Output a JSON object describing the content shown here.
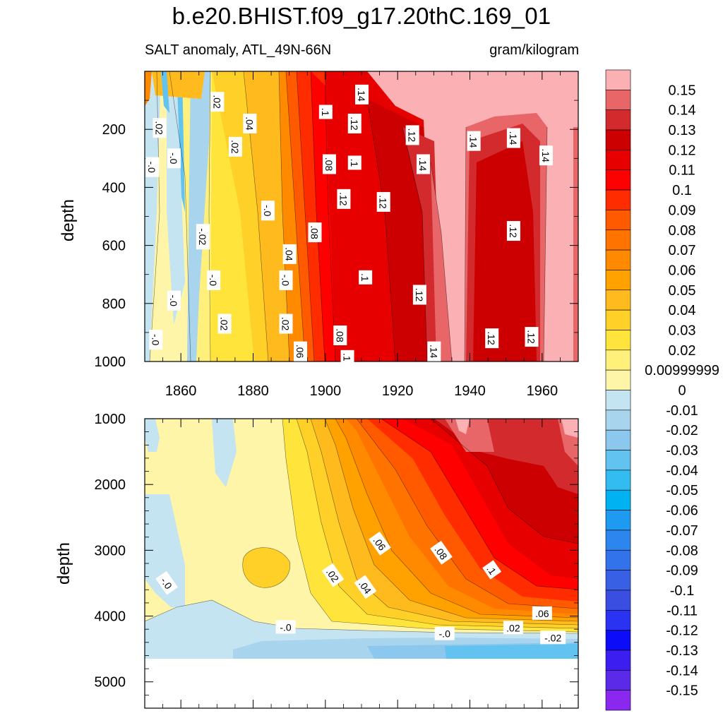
{
  "chart_data": {
    "type": "heatmap",
    "title": "b.e20.BHIST.f09_g17.20thC.169_01",
    "subtitle_left": "SALT anomaly, ATL_49N-66N",
    "subtitle_right": "gram/kilogram",
    "panels": [
      {
        "name": "upper",
        "ylabel": "depth",
        "xlim": [
          1850,
          1970
        ],
        "ylim": [
          0,
          1000
        ],
        "x_ticks": [
          "1860",
          "1880",
          "1900",
          "1920",
          "1940",
          "1960"
        ],
        "y_ticks": [
          {
            "value": 200,
            "label": "200"
          },
          {
            "value": 400,
            "label": "400"
          },
          {
            "value": 600,
            "label": "600"
          },
          {
            "value": 800,
            "label": "800"
          },
          {
            "value": 1000,
            "label": "1000"
          }
        ],
        "contour_labels": [
          {
            "text": ".02",
            "x": 1870,
            "y": 105
          },
          {
            "text": ".04",
            "x": 1879,
            "y": 180
          },
          {
            "text": ".02",
            "x": 1854,
            "y": 195
          },
          {
            "text": "-.0",
            "x": 1852,
            "y": 330
          },
          {
            "text": "-.0",
            "x": 1858,
            "y": 300
          },
          {
            "text": ".02",
            "x": 1875,
            "y": 260
          },
          {
            "text": ".1",
            "x": 1900,
            "y": 140
          },
          {
            "text": ".14",
            "x": 1910,
            "y": 80
          },
          {
            "text": ".12",
            "x": 1908,
            "y": 180
          },
          {
            "text": ".12",
            "x": 1924,
            "y": 220
          },
          {
            "text": ".08",
            "x": 1901,
            "y": 320
          },
          {
            "text": ".1",
            "x": 1908,
            "y": 315
          },
          {
            "text": ".14",
            "x": 1927,
            "y": 320
          },
          {
            "text": ".14",
            "x": 1941,
            "y": 240
          },
          {
            "text": ".14",
            "x": 1952,
            "y": 230
          },
          {
            "text": ".14",
            "x": 1961,
            "y": 290
          },
          {
            "text": ".12",
            "x": 1905,
            "y": 440
          },
          {
            "text": ".12",
            "x": 1916,
            "y": 450
          },
          {
            "text": "-.0",
            "x": 1884,
            "y": 480
          },
          {
            "text": ".12",
            "x": 1952,
            "y": 550
          },
          {
            "text": ".08",
            "x": 1897,
            "y": 555
          },
          {
            "text": "-.02",
            "x": 1866,
            "y": 570
          },
          {
            "text": ".04",
            "x": 1890,
            "y": 630
          },
          {
            "text": "-.0",
            "x": 1869,
            "y": 720
          },
          {
            "text": "-.0",
            "x": 1889,
            "y": 720
          },
          {
            "text": ".1",
            "x": 1911,
            "y": 710
          },
          {
            "text": "-.0",
            "x": 1858,
            "y": 790
          },
          {
            "text": ".12",
            "x": 1926,
            "y": 770
          },
          {
            "text": ".02",
            "x": 1872,
            "y": 870
          },
          {
            "text": ".02",
            "x": 1889,
            "y": 870
          },
          {
            "text": "-.0",
            "x": 1853,
            "y": 925
          },
          {
            "text": ".08",
            "x": 1904,
            "y": 910
          },
          {
            "text": ".12",
            "x": 1946,
            "y": 920
          },
          {
            "text": ".12",
            "x": 1957,
            "y": 915
          },
          {
            "text": ".06",
            "x": 1893,
            "y": 965
          },
          {
            "text": ".1",
            "x": 1906,
            "y": 985
          },
          {
            "text": ".14",
            "x": 1930,
            "y": 965
          }
        ]
      },
      {
        "name": "lower",
        "ylabel": "depth",
        "xlim": [
          1850,
          1970
        ],
        "ylim": [
          1000,
          5400
        ],
        "y_ticks": [
          {
            "value": 1000,
            "label": "1000"
          },
          {
            "value": 2000,
            "label": "2000"
          },
          {
            "value": 3000,
            "label": "3000"
          },
          {
            "value": 4000,
            "label": "4000"
          },
          {
            "value": 5000,
            "label": "5000"
          }
        ],
        "data_bottom": 4620,
        "contour_labels": [
          {
            "text": ".06",
            "x": 1915,
            "y": 2900
          },
          {
            "text": ".08",
            "x": 1932,
            "y": 3040
          },
          {
            "text": ".1",
            "x": 1946,
            "y": 3300
          },
          {
            "text": "-.0",
            "x": 1856,
            "y": 3500
          },
          {
            "text": ".02",
            "x": 1902,
            "y": 3380
          },
          {
            "text": ".04",
            "x": 1911,
            "y": 3560
          },
          {
            "text": ".06",
            "x": 1960,
            "y": 3960
          },
          {
            "text": "-.0",
            "x": 1889,
            "y": 4170
          },
          {
            "text": ".02",
            "x": 1952,
            "y": 4180
          },
          {
            "text": "-.0",
            "x": 1933,
            "y": 4270
          },
          {
            "text": "-.02",
            "x": 1963,
            "y": 4330
          }
        ]
      }
    ],
    "colorbar": {
      "orientation": "vertical",
      "labels": [
        "0.15",
        "0.14",
        "0.13",
        "0.12",
        "0.11",
        "0.1",
        "0.09",
        "0.08",
        "0.07",
        "0.06",
        "0.05",
        "0.04",
        "0.03",
        "0.02",
        "0.00999999",
        "0",
        "-0.01",
        "-0.02",
        "-0.03",
        "-0.04",
        "-0.05",
        "-0.06",
        "-0.07",
        "-0.08",
        "-0.09",
        "-0.1",
        "-0.11",
        "-0.12",
        "-0.13",
        "-0.14",
        "-0.15"
      ],
      "colors": [
        "#fbb0b4",
        "#e86568",
        "#d32a2e",
        "#cc0000",
        "#e60000",
        "#ff0000",
        "#ff2c00",
        "#ff5a00",
        "#ff7400",
        "#ff8a00",
        "#ffa200",
        "#ffbb1e",
        "#ffd028",
        "#ffe43c",
        "#fff07c",
        "#fff5a8",
        "#c4e4f2",
        "#a8d4ee",
        "#8cc8ee",
        "#62c2f0",
        "#32bcf0",
        "#00b2f2",
        "#1e9af0",
        "#2c86ee",
        "#3272ea",
        "#3860e4",
        "#3a4ee2",
        "#2b33f2",
        "#0c0cf8",
        "#3c1ff0",
        "#5a2ae8",
        "#8a28f0"
      ]
    }
  }
}
